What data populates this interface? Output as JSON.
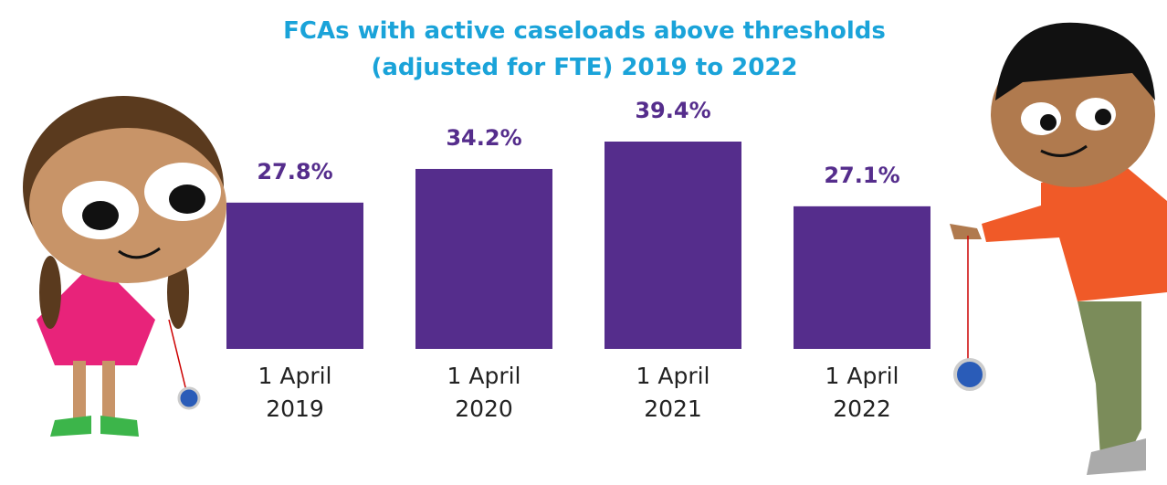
{
  "chart_data": {
    "type": "bar",
    "title": "FCAs with active caseloads above thresholds (adjusted for FTE) 2019 to 2022",
    "categories": [
      "1 April 2019",
      "1 April 2020",
      "1 April 2021",
      "1 April 2022"
    ],
    "values": [
      27.8,
      34.2,
      39.4,
      27.1
    ],
    "value_labels": [
      "27.8%",
      "34.2%",
      "39.4%",
      "27.1%"
    ],
    "color": "#552d8c"
  }
}
